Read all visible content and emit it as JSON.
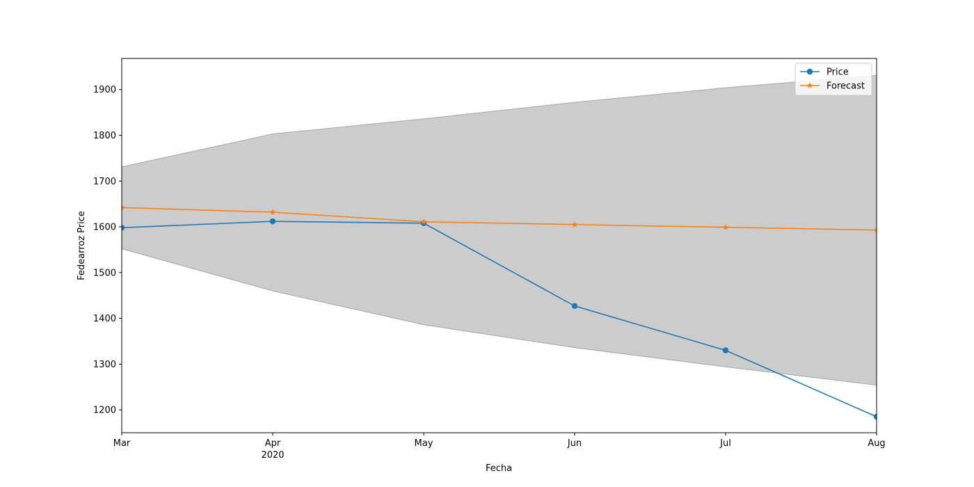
{
  "chart_data": {
    "type": "line",
    "title": "",
    "xlabel": "Fecha",
    "ylabel": "Fedearroz Price",
    "x": [
      "Mar",
      "Apr",
      "May",
      "Jun",
      "Jul",
      "Aug"
    ],
    "x_year_label": "2020",
    "x_year_under": "Apr",
    "ylim": [
      1150,
      1968
    ],
    "yticks": [
      1200,
      1300,
      1400,
      1500,
      1600,
      1700,
      1800,
      1900
    ],
    "grid": false,
    "legend_position": "top-right",
    "series": [
      {
        "name": "Price",
        "marker": "circle",
        "color": "#1f77b4",
        "values": [
          1598,
          1612,
          1608,
          1427,
          1330,
          1185
        ]
      },
      {
        "name": "Forecast",
        "marker": "star",
        "color": "#ff7f0e",
        "values": [
          1642,
          1632,
          1611,
          1605,
          1599,
          1593
        ]
      }
    ],
    "confidence_band": {
      "color": "#cccccc",
      "lower": [
        1552,
        1460,
        1386,
        1336,
        1294,
        1254
      ],
      "upper": [
        1731,
        1803,
        1836,
        1872,
        1904,
        1931
      ]
    }
  }
}
